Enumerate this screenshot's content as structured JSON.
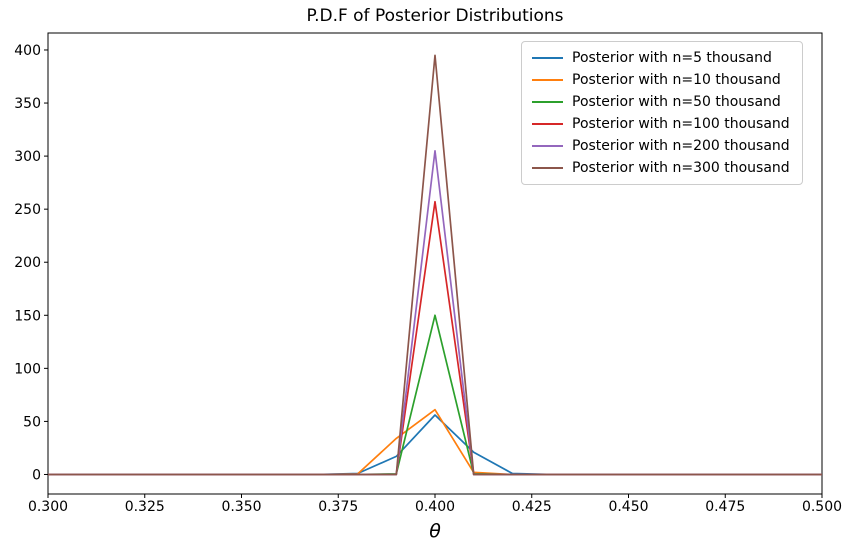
{
  "chart_data": {
    "type": "line",
    "title": "P.D.F of Posterior Distributions",
    "xlabel": "θ",
    "ylabel": "",
    "xlim": [
      0.3,
      0.5
    ],
    "ylim": [
      -18.4,
      416
    ],
    "grid": false,
    "legend_position": "upper right",
    "legend_border_color": "#cccccc",
    "xtick_values": [
      0.3,
      0.325,
      0.35,
      0.375,
      0.4,
      0.425,
      0.45,
      0.475,
      0.5
    ],
    "xtick_labels": [
      "0.300",
      "0.325",
      "0.350",
      "0.375",
      "0.400",
      "0.425",
      "0.450",
      "0.475",
      "0.500"
    ],
    "ytick_values": [
      0,
      50,
      100,
      150,
      200,
      250,
      300,
      350,
      400
    ],
    "ytick_labels": [
      "0",
      "50",
      "100",
      "150",
      "200",
      "250",
      "300",
      "350",
      "400"
    ],
    "x": [
      0.3,
      0.31,
      0.32,
      0.33,
      0.34,
      0.35,
      0.36,
      0.37,
      0.38,
      0.39,
      0.4,
      0.41,
      0.42,
      0.43,
      0.44,
      0.45,
      0.46,
      0.47,
      0.48,
      0.49,
      0.5
    ],
    "series": [
      {
        "name": "Posterior with n=5 thousand",
        "color": "#1f77b4",
        "values": [
          0,
          0,
          0,
          0,
          0,
          0,
          0,
          0,
          0.9,
          17,
          56,
          21,
          0.9,
          0,
          0,
          0,
          0,
          0,
          0,
          0,
          0
        ]
      },
      {
        "name": "Posterior with n=10 thousand",
        "color": "#ff7f0e",
        "values": [
          0,
          0,
          0,
          0,
          0,
          0,
          0,
          0,
          0.4,
          34,
          61,
          2,
          0,
          0,
          0,
          0,
          0,
          0,
          0,
          0,
          0
        ]
      },
      {
        "name": "Posterior with n=50 thousand",
        "color": "#2ca02c",
        "values": [
          0,
          0,
          0,
          0,
          0,
          0,
          0,
          0,
          0,
          0.5,
          150,
          0.5,
          0,
          0,
          0,
          0,
          0,
          0,
          0,
          0,
          0
        ]
      },
      {
        "name": "Posterior with n=100 thousand",
        "color": "#d62728",
        "values": [
          0,
          0,
          0,
          0,
          0,
          0,
          0,
          0,
          0,
          0.2,
          257,
          0.2,
          0,
          0,
          0,
          0,
          0,
          0,
          0,
          0,
          0
        ]
      },
      {
        "name": "Posterior with n=200 thousand",
        "color": "#9467bd",
        "values": [
          0,
          0,
          0,
          0,
          0,
          0,
          0,
          0,
          0,
          0,
          305,
          0,
          0,
          0,
          0,
          0,
          0,
          0,
          0,
          0,
          0
        ]
      },
      {
        "name": "Posterior with n=300 thousand",
        "color": "#8c564b",
        "values": [
          0,
          0,
          0,
          0,
          0,
          0,
          0,
          0,
          0,
          0,
          395,
          0,
          0,
          0,
          0,
          0,
          0,
          0,
          0,
          0,
          0
        ]
      }
    ]
  }
}
